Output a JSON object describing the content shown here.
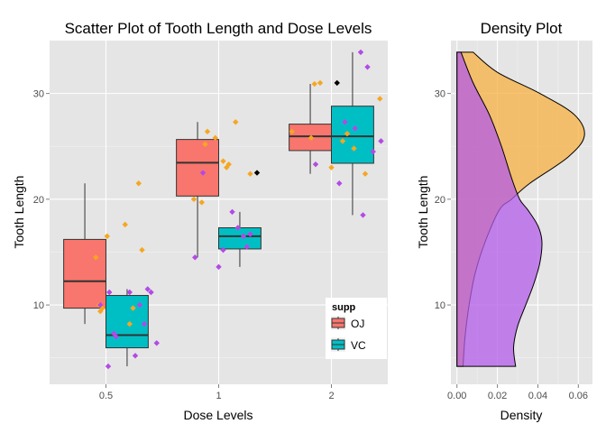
{
  "chart_data": [
    {
      "type": "box",
      "title": "Scatter Plot of Tooth Length and Dose Levels",
      "xlabel": "Dose Levels",
      "ylabel": "Tooth Length",
      "categories": [
        "0.5",
        "1",
        "2"
      ],
      "yticks": [
        10,
        20,
        30
      ],
      "ylim": [
        2.5,
        35
      ],
      "grid": true,
      "legend": {
        "title": "supp",
        "position": "bottom-right",
        "entries": [
          {
            "label": "OJ",
            "color": "#f8766d"
          },
          {
            "label": "VC",
            "color": "#00bfc4"
          }
        ]
      },
      "box_series": [
        {
          "name": "OJ",
          "color": "#f8766d",
          "boxes": [
            {
              "category": "0.5",
              "min": 8.2,
              "q1": 9.7,
              "median": 12.25,
              "q3": 16.2,
              "max": 21.5,
              "outliers": []
            },
            {
              "category": "1",
              "min": 14.5,
              "q1": 20.3,
              "median": 23.45,
              "q3": 25.65,
              "max": 27.3,
              "outliers": [
                31.0
              ]
            },
            {
              "category": "2",
              "min": 22.4,
              "q1": 24.6,
              "median": 25.95,
              "q3": 27.1,
              "max": 30.9,
              "outliers": [
                31.0
              ]
            }
          ]
        },
        {
          "name": "VC",
          "color": "#00bfc4",
          "boxes": [
            {
              "category": "0.5",
              "min": 4.2,
              "q1": 5.95,
              "median": 7.15,
              "q3": 10.9,
              "max": 11.5,
              "outliers": []
            },
            {
              "category": "1",
              "min": 13.6,
              "q1": 15.3,
              "median": 16.5,
              "q3": 17.3,
              "max": 18.8,
              "outliers": [
                22.5
              ]
            },
            {
              "category": "2",
              "min": 18.5,
              "q1": 23.4,
              "median": 25.95,
              "q3": 28.8,
              "max": 33.9,
              "outliers": []
            }
          ]
        }
      ],
      "jitter_points": [
        {
          "color": "#f5a623",
          "x": [
            0.91,
            0.94,
            0.95,
            0.97,
            1.01,
            1.17,
            1.21,
            1.24,
            1.29,
            1.32,
            1.78,
            1.85,
            1.88,
            1.9,
            1.97,
            2.04,
            2.07,
            2.09,
            2.15,
            2.28,
            2.65,
            2.82,
            2.85,
            2.9,
            3.0,
            3.1,
            3.14,
            3.2,
            3.3,
            3.43
          ],
          "y": [
            14.5,
            10.0,
            9.4,
            9.7,
            16.5,
            17.6,
            8.2,
            9.7,
            21.5,
            15.2,
            20.0,
            19.7,
            25.2,
            26.4,
            25.8,
            23.6,
            23.0,
            23.3,
            27.3,
            22.4,
            26.4,
            25.8,
            30.9,
            31.0,
            23.0,
            25.5,
            26.2,
            24.8,
            22.4,
            29.5
          ]
        },
        {
          "color": "#b349e6",
          "x": [
            0.95,
            1.02,
            1.03,
            1.07,
            1.09,
            1.21,
            1.26,
            1.3,
            1.34,
            1.37,
            1.4,
            1.45,
            1.79,
            1.86,
            2.0,
            2.04,
            2.12,
            2.17,
            2.22,
            2.25,
            2.28,
            2.86,
            3.07,
            3.12,
            3.21,
            3.26,
            3.28,
            3.32,
            3.37,
            3.44
          ],
          "y": [
            10.0,
            4.2,
            11.2,
            7.3,
            7.0,
            11.2,
            5.2,
            10.0,
            8.2,
            11.5,
            11.2,
            6.4,
            14.5,
            22.5,
            13.6,
            15.2,
            18.8,
            17.3,
            16.5,
            15.5,
            16.7,
            23.3,
            21.5,
            27.3,
            26.7,
            33.9,
            18.5,
            32.5,
            24.5,
            25.5
          ]
        },
        {
          "color": "#000000",
          "x": [
            2.34,
            3.05
          ],
          "y": [
            22.5,
            31.0
          ]
        }
      ]
    },
    {
      "type": "density",
      "title": "Density Plot",
      "xlabel": "Density",
      "ylabel": "Tooth Length",
      "xticks": [
        "0.00",
        "0.02",
        "0.04",
        "0.06"
      ],
      "yticks": [
        10,
        20,
        30
      ],
      "xlim": [
        -0.003,
        0.067
      ],
      "ylim": [
        2.5,
        35
      ],
      "orientation": "horizontal",
      "series": [
        {
          "fill": "#f5b042",
          "y": [
            4.2,
            7,
            10,
            13,
            16,
            19,
            20,
            21.5,
            24,
            26,
            28,
            30,
            32,
            33.9
          ],
          "density": [
            0.003,
            0.004,
            0.006,
            0.009,
            0.014,
            0.021,
            0.027,
            0.036,
            0.055,
            0.063,
            0.058,
            0.041,
            0.02,
            0.008
          ]
        },
        {
          "fill": "#b35be8",
          "y": [
            4.2,
            6,
            8,
            10,
            12,
            14,
            16,
            17.5,
            19,
            20,
            22,
            25,
            28,
            31,
            33.9
          ],
          "density": [
            0.029,
            0.028,
            0.03,
            0.034,
            0.038,
            0.041,
            0.042,
            0.04,
            0.035,
            0.031,
            0.027,
            0.022,
            0.016,
            0.008,
            0.002
          ]
        }
      ]
    }
  ]
}
